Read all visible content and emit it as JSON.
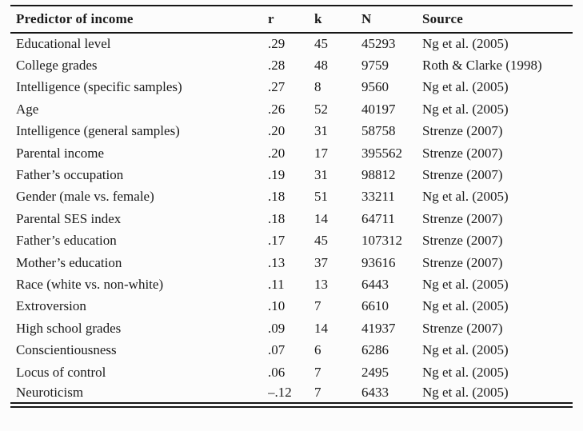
{
  "page": {
    "background": "#fcfcfc",
    "text_color": "#1a1a1a",
    "rule_color": "#161616"
  },
  "table": {
    "headers": [
      "Predictor of income",
      "r",
      "k",
      "N",
      "Source"
    ],
    "rows": [
      {
        "predictor": "Educational level",
        "r": ".29",
        "k": "45",
        "n": "45293",
        "source": "Ng et al. (2005)"
      },
      {
        "predictor": "College grades",
        "r": ".28",
        "k": "48",
        "n": "9759",
        "source": "Roth & Clarke (1998)"
      },
      {
        "predictor": "Intelligence (specific samples)",
        "r": ".27",
        "k": "8",
        "n": "9560",
        "source": "Ng et al. (2005)"
      },
      {
        "predictor": "Age",
        "r": ".26",
        "k": "52",
        "n": "40197",
        "source": "Ng et al. (2005)"
      },
      {
        "predictor": "Intelligence (general samples)",
        "r": ".20",
        "k": "31",
        "n": "58758",
        "source": "Strenze (2007)"
      },
      {
        "predictor": "Parental income",
        "r": ".20",
        "k": "17",
        "n": "395562",
        "source": "Strenze (2007)"
      },
      {
        "predictor": "Father’s occupation",
        "r": ".19",
        "k": "31",
        "n": "98812",
        "source": "Strenze (2007)"
      },
      {
        "predictor": "Gender (male vs. female)",
        "r": ".18",
        "k": "51",
        "n": "33211",
        "source": "Ng et al. (2005)"
      },
      {
        "predictor": "Parental SES index",
        "r": ".18",
        "k": "14",
        "n": "64711",
        "source": "Strenze (2007)"
      },
      {
        "predictor": "Father’s education",
        "r": ".17",
        "k": "45",
        "n": "107312",
        "source": "Strenze (2007)"
      },
      {
        "predictor": "Mother’s education",
        "r": ".13",
        "k": "37",
        "n": "93616",
        "source": "Strenze (2007)"
      },
      {
        "predictor": "Race (white vs. non-white)",
        "r": ".11",
        "k": "13",
        "n": "6443",
        "source": "Ng et al. (2005)"
      },
      {
        "predictor": "Extroversion",
        "r": ".10",
        "k": "7",
        "n": "6610",
        "source": "Ng et al. (2005)"
      },
      {
        "predictor": "High school grades",
        "r": ".09",
        "k": "14",
        "n": "41937",
        "source": "Strenze (2007)"
      },
      {
        "predictor": "Conscientiousness",
        "r": ".07",
        "k": "6",
        "n": "6286",
        "source": "Ng et al. (2005)"
      },
      {
        "predictor": "Locus of control",
        "r": ".06",
        "k": "7",
        "n": "2495",
        "source": "Ng et al. (2005)"
      },
      {
        "predictor": "Neuroticism",
        "r": "–.12",
        "k": "7",
        "n": "6433",
        "source": "Ng et al. (2005)"
      }
    ]
  }
}
